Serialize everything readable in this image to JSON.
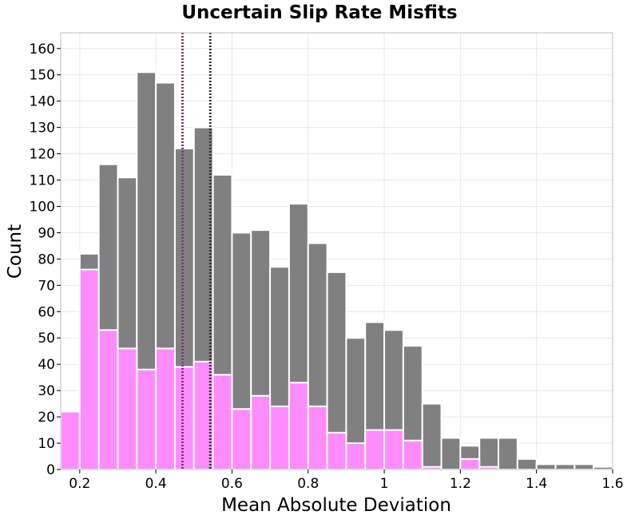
{
  "chart_data": {
    "type": "bar",
    "title": "Uncertain Slip Rate Misfits",
    "xlabel": "Mean Absolute Deviation",
    "ylabel": "Count",
    "xlim": [
      0.15,
      1.6
    ],
    "ylim": [
      0,
      166
    ],
    "bin_width": 0.05,
    "bin_centers": [
      0.175,
      0.225,
      0.275,
      0.325,
      0.375,
      0.425,
      0.475,
      0.525,
      0.575,
      0.625,
      0.675,
      0.725,
      0.775,
      0.825,
      0.875,
      0.925,
      0.975,
      1.025,
      1.075,
      1.125,
      1.175,
      1.225,
      1.275,
      1.325,
      1.375,
      1.425,
      1.475,
      1.525,
      1.575
    ],
    "x_ticks": [
      "0.2",
      "0.4",
      "0.6",
      "0.8",
      "1",
      "1.2",
      "1.4",
      "1.6"
    ],
    "x_tick_values": [
      0.2,
      0.4,
      0.6,
      0.8,
      1.0,
      1.2,
      1.4,
      1.6
    ],
    "y_ticks": [
      "0",
      "10",
      "20",
      "30",
      "40",
      "50",
      "60",
      "70",
      "80",
      "90",
      "100",
      "110",
      "120",
      "130",
      "140",
      "150",
      "160"
    ],
    "y_tick_values": [
      0,
      10,
      20,
      30,
      40,
      50,
      60,
      70,
      80,
      90,
      100,
      110,
      120,
      130,
      140,
      150,
      160
    ],
    "grid": true,
    "series": [
      {
        "color": "#808080",
        "values": [
          22,
          82,
          116,
          111,
          151,
          147,
          122,
          130,
          112,
          90,
          91,
          77,
          101,
          86,
          75,
          50,
          56,
          53,
          47,
          25,
          12,
          9,
          12,
          12,
          4,
          2,
          2,
          2,
          1
        ]
      },
      {
        "color": "#ff8cff",
        "values": [
          22,
          76,
          53,
          46,
          38,
          46,
          39,
          41,
          36,
          23,
          28,
          24,
          33,
          24,
          14,
          10,
          15,
          15,
          11,
          1,
          0,
          4,
          1,
          0,
          0,
          0,
          0,
          0,
          0
        ]
      }
    ],
    "reference_lines": [
      {
        "x": 0.47,
        "color": "#7a3a7a",
        "style": "dotted"
      },
      {
        "x": 0.543,
        "color": "#333333",
        "style": "dotted"
      }
    ]
  }
}
